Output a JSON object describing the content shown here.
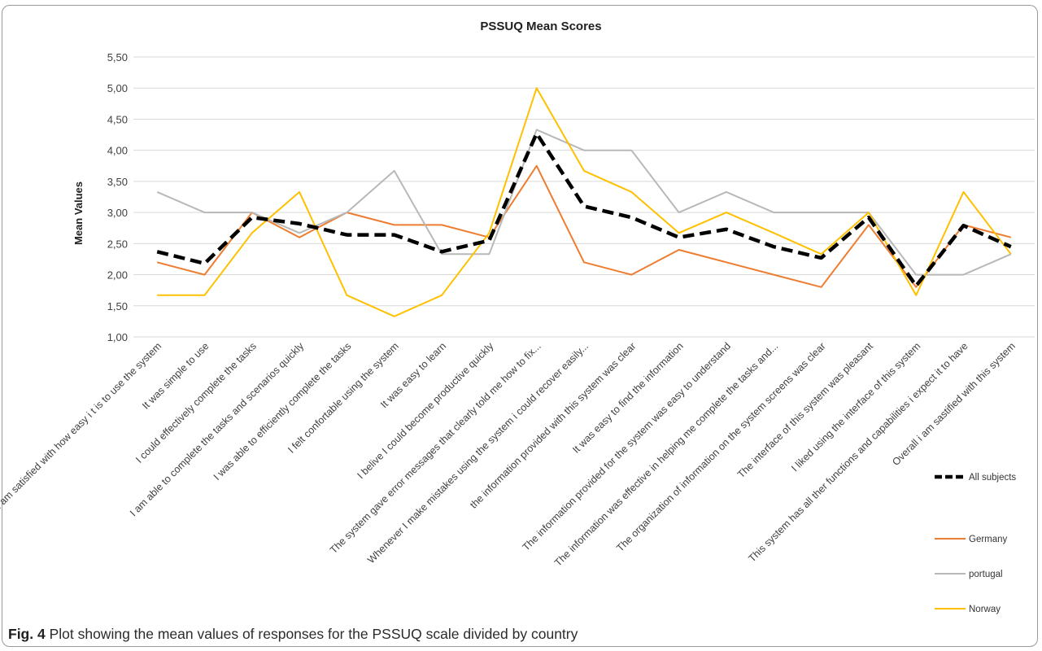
{
  "figure": {
    "caption_label": "Fig. 4",
    "caption_text": "Plot showing the mean values of responses for the PSSUQ scale divided by country"
  },
  "chart_data": {
    "type": "line",
    "title": "PSSUQ Mean Scores",
    "ylabel": "Mean Values",
    "xlabel": "",
    "ylim": [
      1.0,
      5.5
    ],
    "yticks": [
      "1,00",
      "1,50",
      "2,00",
      "2,50",
      "3,00",
      "3,50",
      "4,00",
      "4,50",
      "5,00",
      "5,50"
    ],
    "grid": true,
    "legend_position": "right",
    "categories": [
      "I am satisfied with how easy i t is to use the system",
      "It was simple to use",
      "I could effectively complete the tasks",
      "I am able to complete the tasks and scenarios quickly",
      "I was able to efficiently complete the tasks",
      "I felt confortable using the system",
      "It was easy to learn",
      "I belive I could become productive quickly",
      "The system gave error messages that clearly told me how to fix...",
      "Whenever I  make mistakes using the system i could recover easily...",
      "the information provided with this system was clear",
      "It was easy to find the information",
      "The information provided for the system was easy to understand",
      "The information was effective in helping me complete the tasks and...",
      "The organization of information on the system screens was clear",
      "The interface of this system  was pleasant",
      "I liked using the interface of this system",
      "This system has all ther functions and capabilities i expect it to have",
      "Overall i am sastified with this system"
    ],
    "series": [
      {
        "name": "Germany",
        "color": "#ED7D31",
        "width": 2,
        "dash": "",
        "values": [
          2.2,
          2.0,
          3.0,
          2.6,
          3.0,
          2.8,
          2.8,
          2.6,
          3.75,
          2.2,
          2.0,
          2.4,
          2.2,
          2.0,
          1.8,
          2.8,
          1.8,
          2.8,
          2.6
        ]
      },
      {
        "name": "portugal",
        "color": "#B8B8B8",
        "width": 2,
        "dash": "",
        "values": [
          3.33,
          3.0,
          3.0,
          2.67,
          3.0,
          3.67,
          2.33,
          2.33,
          4.33,
          4.0,
          4.0,
          3.0,
          3.33,
          3.0,
          3.0,
          3.0,
          2.0,
          2.0,
          2.33
        ]
      },
      {
        "name": "Norway",
        "color": "#FFC000",
        "width": 2,
        "dash": "",
        "values": [
          1.67,
          1.67,
          2.67,
          3.33,
          1.67,
          1.33,
          1.67,
          2.67,
          5.0,
          3.67,
          3.33,
          2.67,
          3.0,
          2.67,
          2.33,
          3.0,
          1.67,
          3.33,
          2.33
        ]
      },
      {
        "name": "All subjects",
        "color": "#000000",
        "width": 4.5,
        "dash": "14,7",
        "values": [
          2.37,
          2.18,
          2.92,
          2.82,
          2.64,
          2.64,
          2.37,
          2.55,
          4.27,
          3.1,
          2.92,
          2.6,
          2.73,
          2.45,
          2.27,
          2.92,
          1.82,
          2.79,
          2.45
        ]
      }
    ],
    "legend_order": [
      "All subjects",
      "Germany",
      "portugal",
      "Norway"
    ]
  }
}
